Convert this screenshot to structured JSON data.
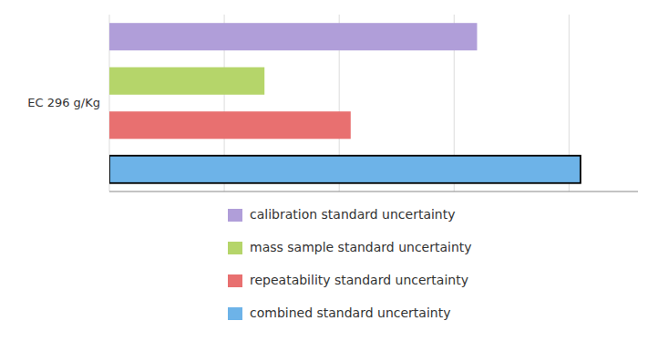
{
  "chart_data": {
    "type": "bar",
    "orientation": "horizontal",
    "categories": [
      "EC 296 g/Kg"
    ],
    "series": [
      {
        "name": "calibration standard uncertainty",
        "color": "#b09ed9",
        "values": [
          3.2
        ]
      },
      {
        "name": "mass sample standard uncertainty",
        "color": "#b5d56a",
        "values": [
          1.35
        ]
      },
      {
        "name": "repeatability standard uncertainty",
        "color": "#e87070",
        "values": [
          2.1
        ]
      },
      {
        "name": "combined standard uncertainty",
        "color": "#6db3e8",
        "values": [
          4.1
        ]
      }
    ],
    "xlim": [
      0,
      4.6
    ],
    "xticks": [
      0,
      1,
      2,
      3,
      4
    ],
    "grid": true,
    "tick_labels": "y",
    "legend": "bottom"
  }
}
